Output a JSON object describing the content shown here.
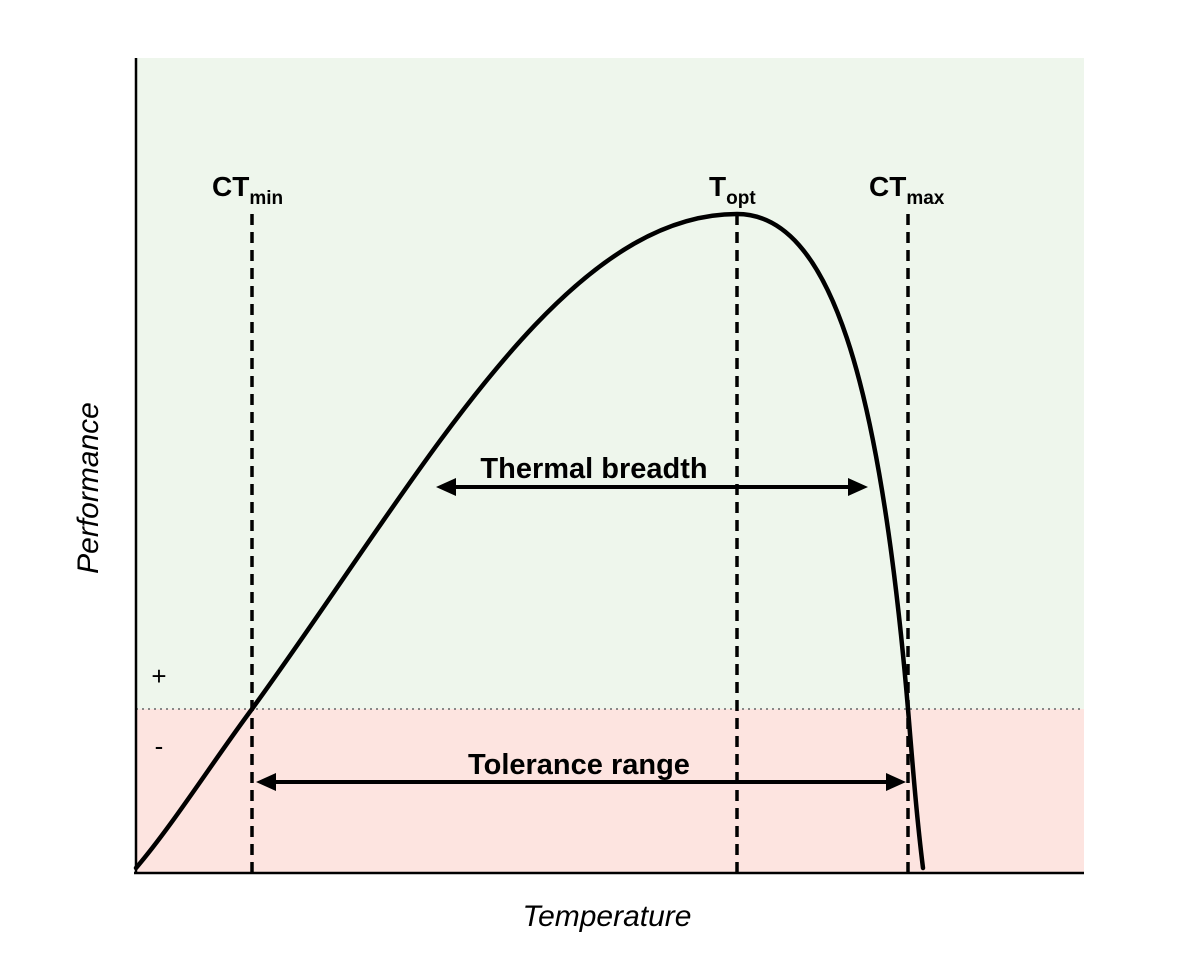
{
  "chart_data": {
    "type": "line",
    "xlabel": "Temperature",
    "ylabel": "Performance",
    "markers": {
      "ct_min": {
        "main": "CT",
        "sub": "min"
      },
      "t_opt": {
        "main": "T",
        "sub": "opt"
      },
      "ct_max": {
        "main": "CT",
        "sub": "max"
      }
    },
    "annotations": {
      "thermal_breadth": "Thermal breadth",
      "tolerance_range": "Tolerance range"
    },
    "regions": {
      "positive_sign": "+",
      "negative_sign": "-",
      "positive_color": "#eef6ec",
      "negative_color": "#fde4e0"
    },
    "x_range": [
      0,
      1
    ],
    "y_range": [
      0,
      1
    ],
    "ct_min_x": 0.123,
    "t_opt_x": 0.634,
    "ct_max_x": 0.814,
    "zero_performance_y": 0.2,
    "peak_performance_y": 0.811,
    "thermal_breadth_range": [
      0.318,
      0.769
    ],
    "curve": [
      [
        0.0,
        0.005
      ],
      [
        0.123,
        0.2
      ],
      [
        0.2,
        0.318
      ],
      [
        0.3,
        0.462
      ],
      [
        0.4,
        0.6
      ],
      [
        0.5,
        0.72
      ],
      [
        0.6,
        0.8
      ],
      [
        0.634,
        0.811
      ],
      [
        0.68,
        0.79
      ],
      [
        0.73,
        0.7
      ],
      [
        0.769,
        0.479
      ],
      [
        0.79,
        0.43
      ],
      [
        0.814,
        0.2
      ],
      [
        0.829,
        0.005
      ]
    ]
  }
}
